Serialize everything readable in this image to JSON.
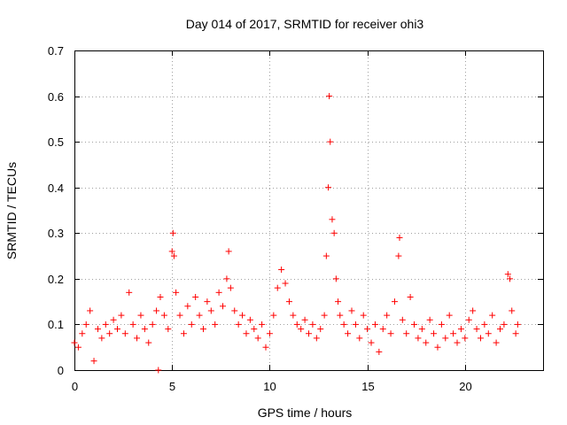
{
  "chart_data": {
    "type": "scatter",
    "title": "Day 014 of 2017, SRMTID for receiver ohi3",
    "xlabel": "GPS time / hours",
    "ylabel": "SRMTID / TECUs",
    "xlim": [
      0,
      24
    ],
    "ylim": [
      0,
      0.7
    ],
    "xticks": [
      0,
      5,
      10,
      15,
      20
    ],
    "yticks": [
      0,
      0.1,
      0.2,
      0.3,
      0.4,
      0.5,
      0.6,
      0.7
    ],
    "xtick_labels": [
      "0",
      "5",
      "10",
      "15",
      "20"
    ],
    "ytick_labels": [
      "0",
      "0.1",
      "0.2",
      "0.3",
      "0.4",
      "0.5",
      "0.6",
      "0.7"
    ],
    "grid": true,
    "marker": "+",
    "color": "#ff0000",
    "series": [
      {
        "name": "SRMTID",
        "x": [
          0.0,
          0.2,
          0.4,
          0.6,
          0.8,
          1.0,
          1.2,
          1.4,
          1.6,
          1.8,
          2.0,
          2.2,
          2.4,
          2.6,
          2.8,
          3.0,
          3.2,
          3.4,
          3.6,
          3.8,
          4.0,
          4.2,
          4.3,
          4.4,
          4.6,
          4.8,
          5.0,
          5.05,
          5.1,
          5.2,
          5.4,
          5.6,
          5.8,
          6.0,
          6.2,
          6.4,
          6.6,
          6.8,
          7.0,
          7.2,
          7.4,
          7.6,
          7.8,
          7.9,
          8.0,
          8.2,
          8.4,
          8.6,
          8.8,
          9.0,
          9.2,
          9.4,
          9.6,
          9.8,
          10.0,
          10.2,
          10.4,
          10.6,
          10.8,
          11.0,
          11.2,
          11.4,
          11.6,
          11.8,
          12.0,
          12.2,
          12.4,
          12.6,
          12.8,
          12.9,
          13.0,
          13.05,
          13.1,
          13.2,
          13.3,
          13.4,
          13.5,
          13.6,
          13.8,
          14.0,
          14.2,
          14.4,
          14.6,
          14.8,
          15.0,
          15.2,
          15.4,
          15.6,
          15.8,
          16.0,
          16.2,
          16.4,
          16.6,
          16.65,
          16.8,
          17.0,
          17.2,
          17.4,
          17.6,
          17.8,
          18.0,
          18.2,
          18.4,
          18.6,
          18.8,
          19.0,
          19.2,
          19.4,
          19.6,
          19.8,
          20.0,
          20.2,
          20.4,
          20.6,
          20.8,
          21.0,
          21.2,
          21.4,
          21.6,
          21.8,
          22.0,
          22.2,
          22.3,
          22.4,
          22.6,
          22.7
        ],
        "y": [
          0.06,
          0.05,
          0.08,
          0.1,
          0.13,
          0.02,
          0.09,
          0.07,
          0.1,
          0.08,
          0.11,
          0.09,
          0.12,
          0.08,
          0.17,
          0.1,
          0.07,
          0.12,
          0.09,
          0.06,
          0.1,
          0.13,
          0.0,
          0.16,
          0.12,
          0.09,
          0.26,
          0.3,
          0.25,
          0.17,
          0.12,
          0.08,
          0.14,
          0.1,
          0.16,
          0.12,
          0.09,
          0.15,
          0.13,
          0.1,
          0.17,
          0.14,
          0.2,
          0.26,
          0.18,
          0.13,
          0.1,
          0.12,
          0.08,
          0.11,
          0.09,
          0.07,
          0.1,
          0.05,
          0.08,
          0.12,
          0.18,
          0.22,
          0.19,
          0.15,
          0.12,
          0.1,
          0.09,
          0.11,
          0.08,
          0.1,
          0.07,
          0.09,
          0.12,
          0.25,
          0.4,
          0.6,
          0.5,
          0.33,
          0.3,
          0.2,
          0.15,
          0.12,
          0.1,
          0.08,
          0.13,
          0.1,
          0.07,
          0.12,
          0.09,
          0.06,
          0.1,
          0.04,
          0.09,
          0.12,
          0.08,
          0.15,
          0.25,
          0.29,
          0.11,
          0.08,
          0.16,
          0.1,
          0.07,
          0.09,
          0.06,
          0.11,
          0.08,
          0.05,
          0.1,
          0.07,
          0.12,
          0.08,
          0.06,
          0.09,
          0.07,
          0.11,
          0.13,
          0.09,
          0.07,
          0.1,
          0.08,
          0.12,
          0.06,
          0.09,
          0.1,
          0.21,
          0.2,
          0.13,
          0.08,
          0.1
        ]
      }
    ]
  }
}
